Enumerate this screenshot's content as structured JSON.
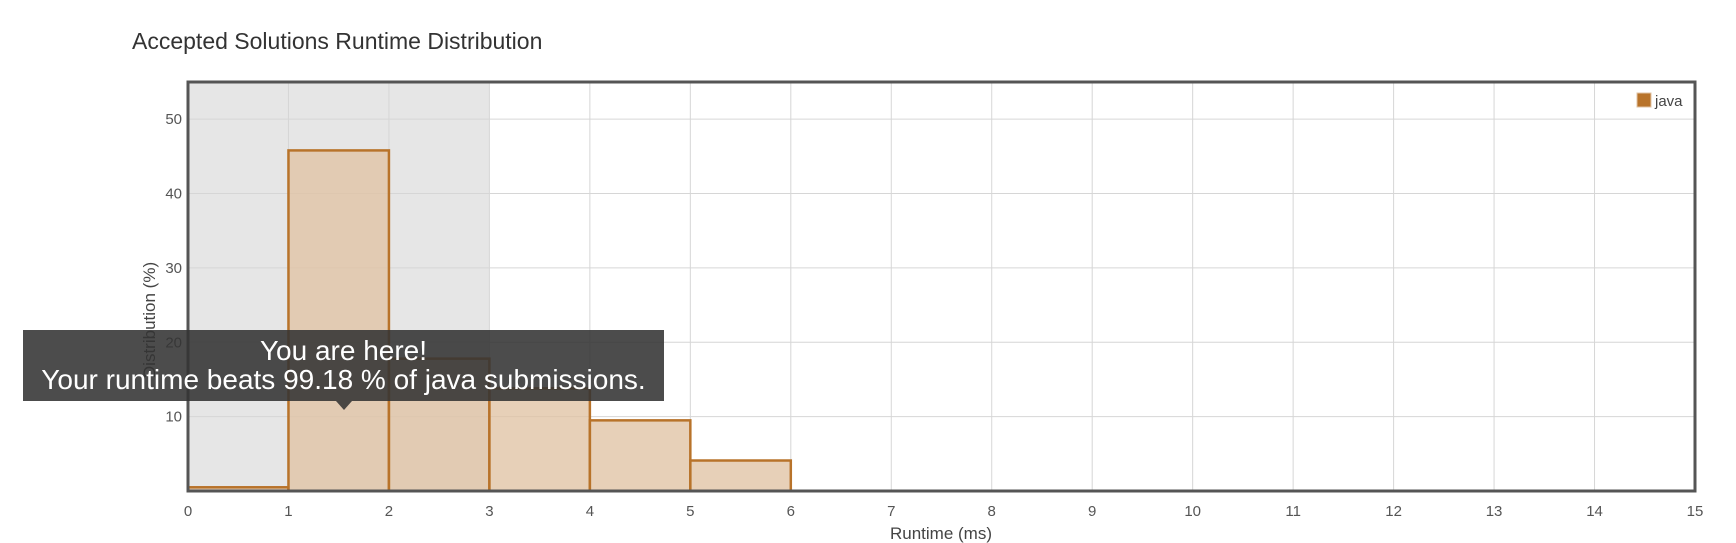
{
  "chart_data": {
    "type": "bar",
    "title": "Accepted Solutions Runtime Distribution",
    "xlabel": "Runtime (ms)",
    "ylabel": "Distribution (%)",
    "xlim": [
      0,
      15
    ],
    "ylim": [
      0,
      55
    ],
    "x_ticks": [
      "0",
      "1",
      "2",
      "3",
      "4",
      "5",
      "6",
      "7",
      "8",
      "9",
      "10",
      "11",
      "12",
      "13",
      "14",
      "15"
    ],
    "y_ticks": [
      "10",
      "20",
      "30",
      "40",
      "50"
    ],
    "grid": true,
    "legend_position": "top-right",
    "highlight_range": [
      0,
      3
    ],
    "series": [
      {
        "name": "java",
        "color": "#b8732a",
        "fill": "#e0c3a4",
        "bins": [
          {
            "x0": 0,
            "x1": 1,
            "value": 0.5
          },
          {
            "x0": 1,
            "x1": 2,
            "value": 45.8
          },
          {
            "x0": 2,
            "x1": 3,
            "value": 17.8
          },
          {
            "x0": 3,
            "x1": 4,
            "value": 13.8
          },
          {
            "x0": 4,
            "x1": 5,
            "value": 9.5
          },
          {
            "x0": 5,
            "x1": 6,
            "value": 4.1
          }
        ]
      }
    ]
  },
  "tooltip": {
    "line1": "You are here!",
    "line2": "Your runtime beats 99.18 % of java submissions."
  }
}
